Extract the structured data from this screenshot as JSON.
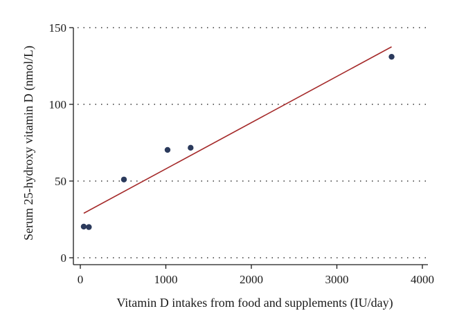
{
  "chart_data": {
    "type": "scatter",
    "title": "",
    "xlabel": "Vitamin D intakes from food and supplements (IU/day)",
    "ylabel": "Serum 25-hydroxy vitamin D (nmol/L)",
    "xlim": [
      0,
      4000
    ],
    "ylim": [
      0,
      150
    ],
    "xticks": [
      0,
      1000,
      2000,
      3000,
      4000
    ],
    "yticks": [
      0,
      50,
      100,
      150
    ],
    "grid": "horizontal dotted",
    "point_color": "#2b3a5c",
    "fit_line_color": "#a52a2a",
    "series": [
      {
        "points": [
          {
            "x": 40,
            "y": 20.3
          },
          {
            "x": 100,
            "y": 20.0
          },
          {
            "x": 510,
            "y": 51.0
          },
          {
            "x": 1020,
            "y": 70.3
          },
          {
            "x": 1290,
            "y": 71.7
          },
          {
            "x": 3640,
            "y": 131.0
          }
        ]
      }
    ],
    "fit_line": {
      "x": [
        40,
        3640
      ],
      "y": [
        29.0,
        137.5
      ]
    }
  }
}
